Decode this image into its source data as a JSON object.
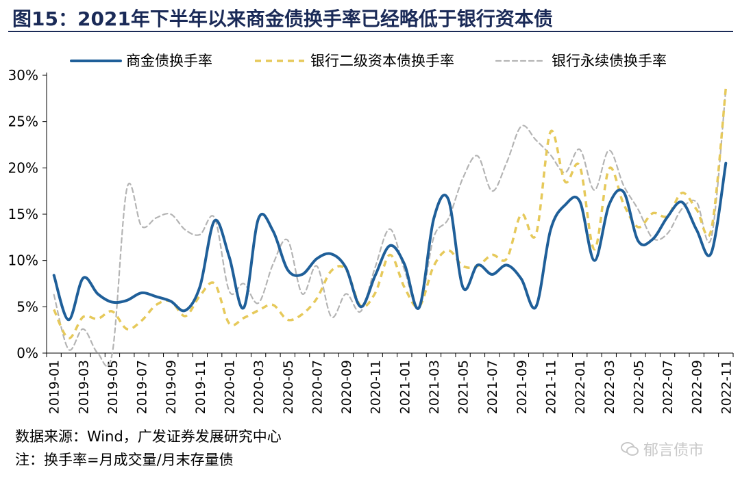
{
  "header": {
    "title": "图15：2021年下半年以来商金债换手率已经略低于银行资本债"
  },
  "footer": {
    "source": "数据来源：Wind，广发证券发展研究中心",
    "note": "注：换手率=月成交量/月末存量债",
    "watermark": "郁言债市"
  },
  "chart_data": {
    "type": "line",
    "title": "",
    "xlabel": "",
    "ylabel": "",
    "ylim": [
      0,
      30
    ],
    "yticks": [
      0,
      5,
      10,
      15,
      20,
      25,
      30
    ],
    "ytick_labels": [
      "0%",
      "5%",
      "10%",
      "15%",
      "20%",
      "25%",
      "30%"
    ],
    "legend_position": "top",
    "grid": false,
    "x": [
      "2019-01",
      "2019-02",
      "2019-03",
      "2019-04",
      "2019-05",
      "2019-06",
      "2019-07",
      "2019-08",
      "2019-09",
      "2019-10",
      "2019-11",
      "2019-12",
      "2020-01",
      "2020-02",
      "2020-03",
      "2020-04",
      "2020-05",
      "2020-06",
      "2020-07",
      "2020-08",
      "2020-09",
      "2020-10",
      "2020-11",
      "2020-12",
      "2021-01",
      "2021-02",
      "2021-03",
      "2021-04",
      "2021-05",
      "2021-06",
      "2021-07",
      "2021-08",
      "2021-09",
      "2021-10",
      "2021-11",
      "2021-12",
      "2022-01",
      "2022-02",
      "2022-03",
      "2022-04",
      "2022-05",
      "2022-06",
      "2022-07",
      "2022-08",
      "2022-09",
      "2022-10",
      "2022-11"
    ],
    "xtick_labels": [
      "2019-01",
      "2019-03",
      "2019-05",
      "2019-07",
      "2019-09",
      "2019-11",
      "2020-01",
      "2020-03",
      "2020-05",
      "2020-07",
      "2020-09",
      "2020-11",
      "2021-01",
      "2021-03",
      "2021-05",
      "2021-07",
      "2021-09",
      "2021-11",
      "2022-01",
      "2022-03",
      "2022-05",
      "2022-07",
      "2022-09",
      "2022-11"
    ],
    "series": [
      {
        "name": "商金债换手率",
        "color": "#1f5f99",
        "style": "solid",
        "values": [
          8.4,
          3.6,
          8.1,
          6.4,
          5.5,
          5.7,
          6.5,
          6.1,
          5.6,
          4.6,
          7.2,
          14.3,
          10.4,
          4.9,
          14.5,
          13.2,
          9.0,
          8.5,
          10.2,
          10.7,
          9.2,
          5.0,
          8.4,
          11.6,
          9.6,
          4.9,
          14.5,
          16.6,
          7.1,
          9.5,
          8.5,
          9.5,
          8.0,
          5.0,
          13.3,
          16.0,
          16.4,
          10.0,
          16.0,
          17.4,
          12.1,
          12.3,
          14.7,
          16.3,
          13.3,
          10.8,
          20.5
        ]
      },
      {
        "name": "银行二级资本债换手率",
        "color": "#e6c95a",
        "style": "dashed",
        "values": [
          4.7,
          1.6,
          3.9,
          3.7,
          4.5,
          2.6,
          3.5,
          5.2,
          5.6,
          4.0,
          6.2,
          7.5,
          3.2,
          3.8,
          4.6,
          5.2,
          3.6,
          4.2,
          5.9,
          8.9,
          9.0,
          5.1,
          6.5,
          10.6,
          7.1,
          5.0,
          9.4,
          11.1,
          9.4,
          9.4,
          10.6,
          10.2,
          15.0,
          12.8,
          23.9,
          18.5,
          20.2,
          11.2,
          19.9,
          16.1,
          13.6,
          15.1,
          14.8,
          17.3,
          15.5,
          13.3,
          28.6
        ]
      },
      {
        "name": "银行永续债换手率",
        "color": "#b4b4b4",
        "style": "dotted",
        "values": [
          6.3,
          0.4,
          2.6,
          0.0,
          0.0,
          17.8,
          13.7,
          14.6,
          15.0,
          13.3,
          12.8,
          14.6,
          6.7,
          7.5,
          5.4,
          9.6,
          12.2,
          6.4,
          9.4,
          3.9,
          6.4,
          4.5,
          9.3,
          13.4,
          9.0,
          4.8,
          12.5,
          14.5,
          18.9,
          21.3,
          17.5,
          20.6,
          24.5,
          23.0,
          21.4,
          19.5,
          22.0,
          17.6,
          21.9,
          18.1,
          15.5,
          12.4,
          12.9,
          15.6,
          16.3,
          12.4,
          28.5
        ]
      }
    ]
  }
}
